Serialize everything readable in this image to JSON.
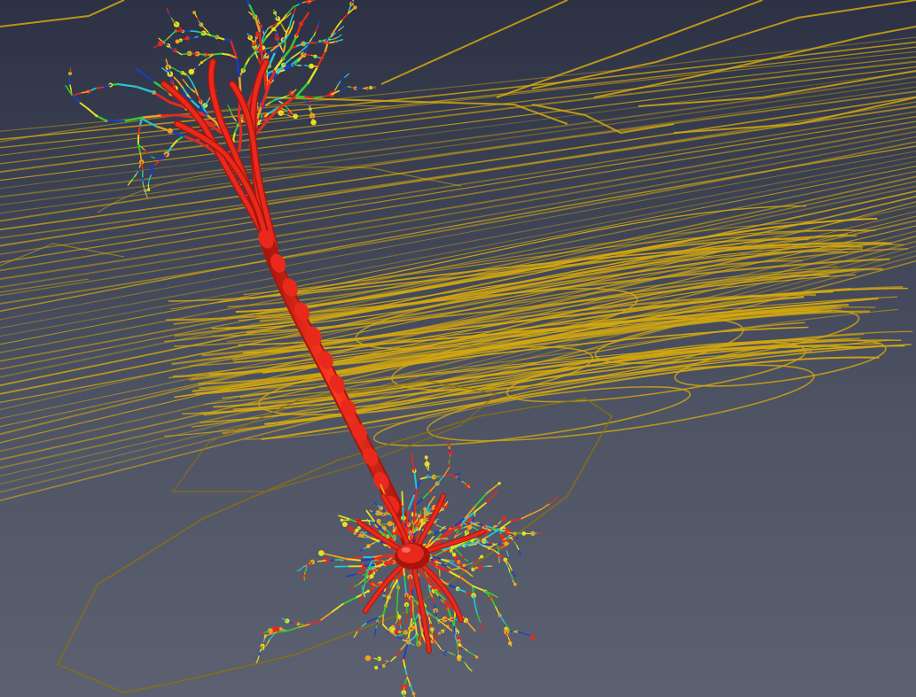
{
  "scene": {
    "subject": "neuron-reconstruction",
    "background_top": "#2c3244",
    "background_bottom": "#5c6171",
    "contour_color": "#d4a80f",
    "contour_color_dim": "#8a6f10",
    "neuron_trunk_color": "#e8291c",
    "neuron_trunk_shade": "#a8150c",
    "branch_colors": [
      "#e8291c",
      "#f0a020",
      "#e6e020",
      "#33cc33",
      "#20c8d8",
      "#1a3cc8"
    ]
  }
}
